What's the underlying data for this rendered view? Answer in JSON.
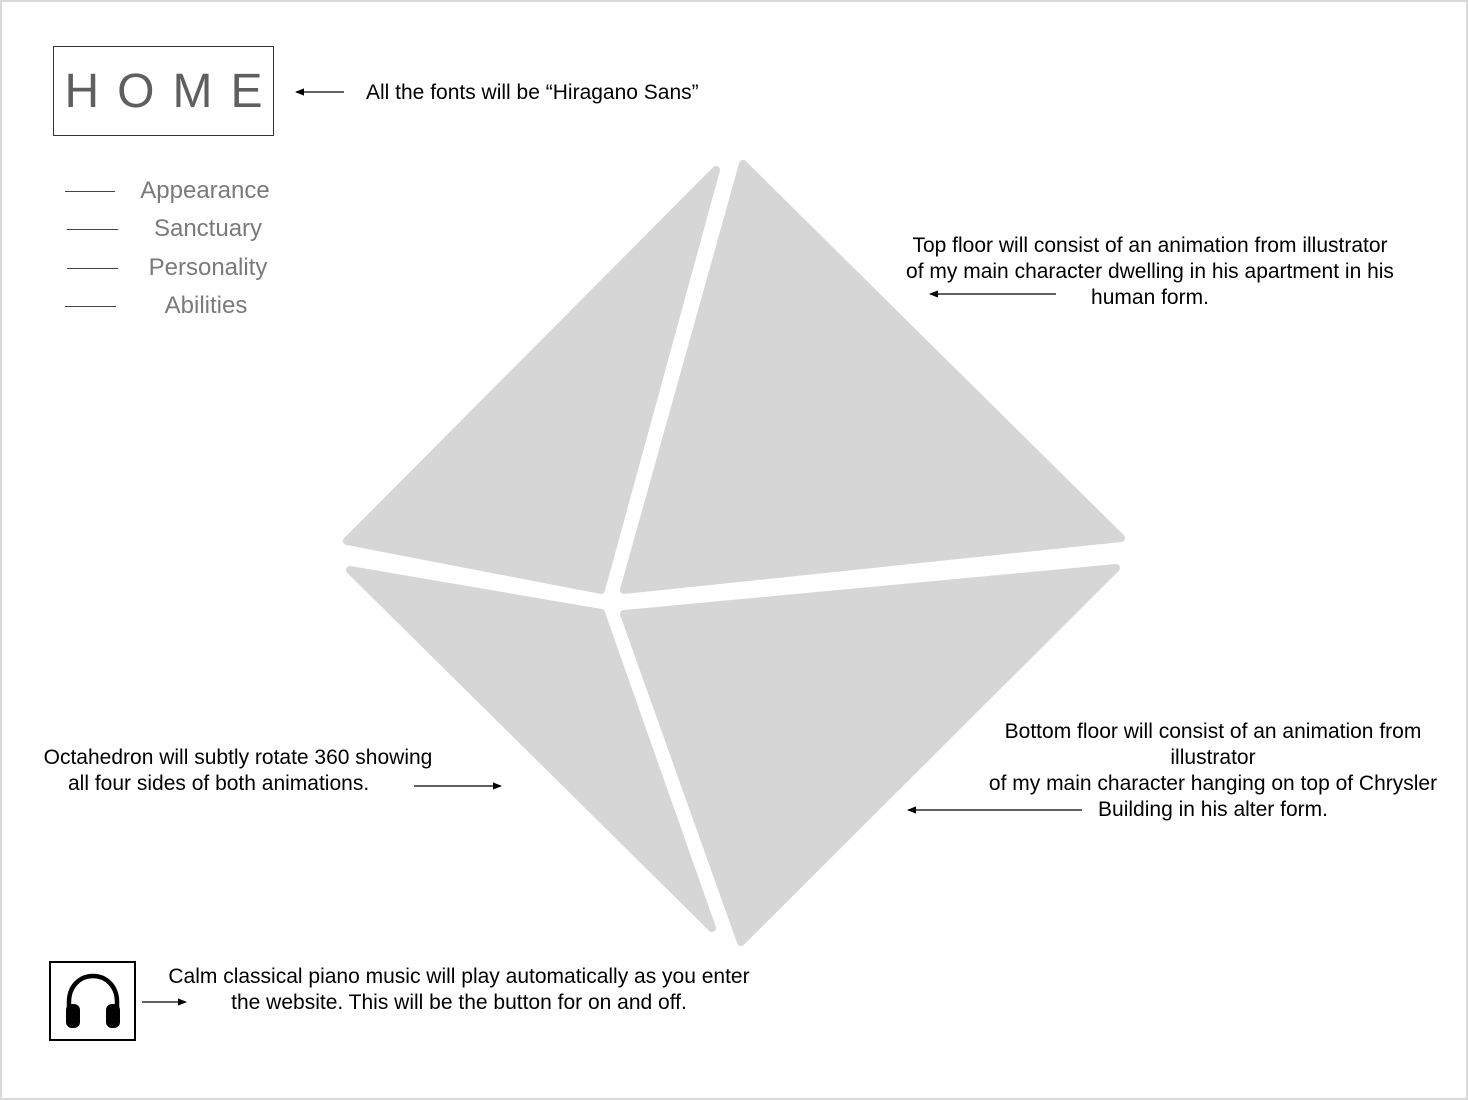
{
  "home": {
    "label": "HOME"
  },
  "nav": {
    "items": [
      {
        "label": "Appearance"
      },
      {
        "label": "Sanctuary"
      },
      {
        "label": "Personality"
      },
      {
        "label": "Abilities"
      }
    ]
  },
  "notes": {
    "fonts": "All the fonts will be “Hiragano Sans”",
    "top_floor": [
      "Top floor will consist of an animation from illustrator",
      "of my main character dwelling in his apartment in his",
      "human form."
    ],
    "octahedron": [
      "Octahedron will subtly rotate 360 showing",
      "all  four sides of both animations."
    ],
    "bottom_floor": [
      "Bottom floor will consist of an animation from",
      "illustrator",
      "of my main character hanging on top of Chrysler",
      "Building in his alter form."
    ],
    "music": [
      "Calm classical piano music will play automatically as you enter",
      "the website. This will be the button for on and off."
    ]
  },
  "icons": {
    "music_button": "headphones-icon",
    "arrow": "arrow-icon"
  },
  "colors": {
    "facet_fill": "#d6d6d6",
    "nav_text": "#7a7a7a",
    "home_text": "#5f5f5f"
  }
}
